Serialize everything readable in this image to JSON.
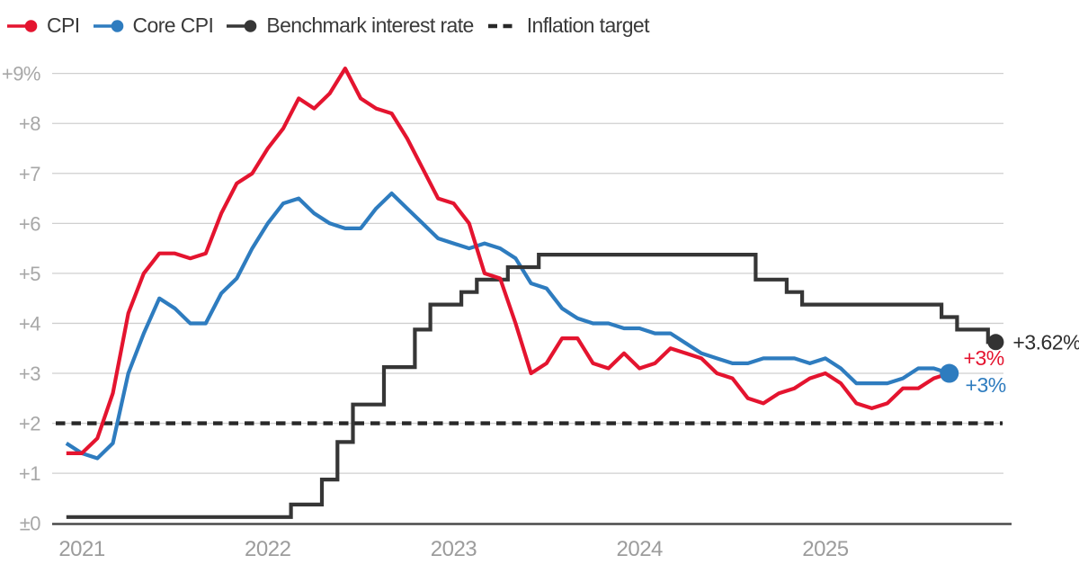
{
  "legend": {
    "items": [
      {
        "id": "cpi",
        "label": "CPI",
        "color": "#e4142f",
        "marker": "line-dot"
      },
      {
        "id": "core-cpi",
        "label": "Core CPI",
        "color": "#2e7cbf",
        "marker": "line-dot"
      },
      {
        "id": "benchmark",
        "label": "Benchmark interest rate",
        "color": "#363636",
        "marker": "line-dot"
      },
      {
        "id": "inflation-target",
        "label": "Inflation target",
        "color": "#282828",
        "marker": "dashed"
      }
    ]
  },
  "chart_data": {
    "type": "line",
    "title": "",
    "xlabel": "",
    "ylabel": "",
    "x_start": "2020-12",
    "x_frequency": "monthly",
    "ylim": [
      0,
      9.35
    ],
    "grid": true,
    "legend_position": "top-left",
    "yticks": [
      {
        "value": 9,
        "label": "+9%"
      },
      {
        "value": 8,
        "label": "+8"
      },
      {
        "value": 7,
        "label": "+7"
      },
      {
        "value": 6,
        "label": "+6"
      },
      {
        "value": 5,
        "label": "+5"
      },
      {
        "value": 4,
        "label": "+4"
      },
      {
        "value": 3,
        "label": "+3"
      },
      {
        "value": 2,
        "label": "+2"
      },
      {
        "value": 1,
        "label": "+1"
      },
      {
        "value": 0,
        "label": "±0"
      }
    ],
    "xticks": [
      {
        "label": "2021",
        "month_index": 1
      },
      {
        "label": "2022",
        "month_index": 13
      },
      {
        "label": "2023",
        "month_index": 25
      },
      {
        "label": "2024",
        "month_index": 37
      },
      {
        "label": "2025",
        "month_index": 49
      }
    ],
    "series": [
      {
        "name": "Core CPI",
        "style": "line",
        "color": "#2e7cbf",
        "end_dot": true,
        "start": "2020-12",
        "end": "2025-09",
        "values": [
          1.6,
          1.4,
          1.3,
          1.6,
          3.0,
          3.8,
          4.5,
          4.3,
          4.0,
          4.0,
          4.6,
          4.9,
          5.5,
          6.0,
          6.4,
          6.5,
          6.2,
          6.0,
          5.9,
          5.9,
          6.3,
          6.6,
          6.3,
          6.0,
          5.7,
          5.6,
          5.5,
          5.6,
          5.5,
          5.3,
          4.8,
          4.7,
          4.3,
          4.1,
          4.0,
          4.0,
          3.9,
          3.9,
          3.8,
          3.8,
          3.6,
          3.4,
          3.3,
          3.2,
          3.2,
          3.3,
          3.3,
          3.3,
          3.2,
          3.3,
          3.1,
          2.8,
          2.8,
          2.8,
          2.9,
          3.1,
          3.1,
          3.0
        ]
      },
      {
        "name": "Benchmark interest rate",
        "style": "step",
        "color": "#363636",
        "end_dot": true,
        "start": "2020-12",
        "end": "2025-12",
        "values": [
          0.125,
          0.125,
          0.125,
          0.125,
          0.125,
          0.125,
          0.125,
          0.125,
          0.125,
          0.125,
          0.125,
          0.125,
          0.125,
          0.125,
          0.125,
          0.375,
          0.375,
          0.875,
          1.625,
          2.375,
          2.375,
          3.125,
          3.125,
          3.875,
          4.375,
          4.375,
          4.625,
          4.875,
          4.875,
          5.125,
          5.125,
          5.375,
          5.375,
          5.375,
          5.375,
          5.375,
          5.375,
          5.375,
          5.375,
          5.375,
          5.375,
          5.375,
          5.375,
          5.375,
          5.375,
          4.875,
          4.875,
          4.625,
          4.375,
          4.375,
          4.375,
          4.375,
          4.375,
          4.375,
          4.375,
          4.375,
          4.375,
          4.125,
          3.875,
          3.875,
          3.625
        ]
      },
      {
        "name": "CPI",
        "style": "line",
        "color": "#e4142f",
        "end_dot": false,
        "start": "2020-12",
        "end": "2025-09",
        "values": [
          1.4,
          1.4,
          1.7,
          2.6,
          4.2,
          5.0,
          5.4,
          5.4,
          5.3,
          5.4,
          6.2,
          6.8,
          7.0,
          7.5,
          7.9,
          8.5,
          8.3,
          8.6,
          9.1,
          8.5,
          8.3,
          8.2,
          7.7,
          7.1,
          6.5,
          6.4,
          6.0,
          5.0,
          4.9,
          4.0,
          3.0,
          3.2,
          3.7,
          3.7,
          3.2,
          3.1,
          3.4,
          3.1,
          3.2,
          3.5,
          3.4,
          3.3,
          3.0,
          2.9,
          2.5,
          2.4,
          2.6,
          2.7,
          2.9,
          3.0,
          2.8,
          2.4,
          2.3,
          2.4,
          2.7,
          2.7,
          2.9,
          3.0
        ]
      },
      {
        "name": "Inflation target",
        "style": "dashed-constant",
        "color": "#282828",
        "end_dot": false,
        "value": 2
      }
    ],
    "end_labels": [
      {
        "series": "Benchmark interest rate",
        "text": "+3.62%",
        "color": "#2e2e2e"
      },
      {
        "series": "CPI",
        "text": "+3%",
        "color": "#e4142f"
      },
      {
        "series": "Core CPI",
        "text": "+3%",
        "color": "#2e7cbf"
      }
    ],
    "colors": {
      "grid": "#cfcfcf",
      "zero_axis": "#4a4a4a",
      "y_tick_text": "#a7a7a7",
      "x_tick_text": "#9c9c9c",
      "background": "#ffffff"
    }
  }
}
